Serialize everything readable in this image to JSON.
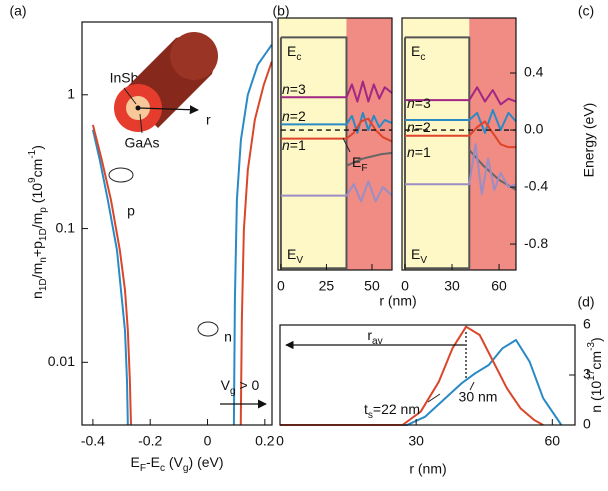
{
  "chart_data": [
    {
      "type": "line",
      "panel_label": "(a)",
      "xlabel": [
        [
          "E",
          ""
        ],
        [
          "F",
          "sub"
        ],
        [
          "-E",
          ""
        ],
        [
          "c",
          "sub"
        ],
        [
          " (V",
          ""
        ],
        [
          "g",
          "sub"
        ],
        [
          ") (eV)",
          ""
        ]
      ],
      "ylabel": [
        [
          "n",
          ""
        ],
        [
          "1D",
          "sub"
        ],
        [
          "/m",
          ""
        ],
        [
          "n",
          "sub"
        ],
        [
          "+p",
          ""
        ],
        [
          "1D",
          "sub"
        ],
        [
          "/m",
          ""
        ],
        [
          "p",
          "sub"
        ],
        [
          " (10",
          ""
        ],
        [
          "9",
          "sup"
        ],
        [
          "cm",
          ""
        ],
        [
          "-1",
          "sup"
        ],
        [
          ")",
          ""
        ]
      ],
      "log_y": true,
      "xlim": [
        -0.438,
        0.225
      ],
      "ylim": [
        0.0034,
        3.5
      ],
      "xticks": [
        -0.4,
        -0.2,
        0,
        0.2
      ],
      "yticks": [
        0.01,
        0.1,
        1
      ],
      "series": [
        {
          "color": "#2a8ac6",
          "x": [
            -0.4,
            -0.376,
            -0.348,
            -0.316,
            -0.302,
            -0.288,
            -0.281,
            -0.278
          ],
          "values": [
            0.547,
            0.326,
            0.164,
            0.069,
            0.0347,
            0.0173,
            0.0073,
            0.0034
          ]
        },
        {
          "color": "#d9472b",
          "x": [
            -0.4,
            -0.369,
            -0.337,
            -0.306,
            -0.288,
            -0.278,
            -0.271,
            -0.267
          ],
          "values": [
            0.596,
            0.326,
            0.164,
            0.069,
            0.0347,
            0.0173,
            0.0073,
            0.0034
          ]
        },
        {
          "color": "#2a8ac6",
          "x": [
            0.092,
            0.0955,
            0.1025,
            0.1165,
            0.1406,
            0.1755,
            0.2243
          ],
          "values": [
            0.0034,
            0.0292,
            0.164,
            0.46,
            1,
            1.68,
            2.37
          ]
        },
        {
          "color": "#d9472b",
          "x": [
            0.116,
            0.1198,
            0.1268,
            0.1406,
            0.1651,
            0.1965,
            0.2243
          ],
          "values": [
            0.0034,
            0.0207,
            0.0975,
            0.274,
            0.65,
            1.19,
            1.77
          ]
        }
      ],
      "annotations": [
        "InSb",
        "GaAs",
        "r",
        "p",
        "n",
        [
          [
            "V",
            ""
          ],
          [
            "g",
            "sub"
          ],
          [
            " > 0",
            ""
          ]
        ]
      ]
    },
    {
      "type": "line",
      "panel_label": "(b)",
      "xlabel": "r (nm)",
      "xlim": [
        -1.6,
        61
      ],
      "ylim": [
        -0.982,
        0.786
      ],
      "xticks": [
        0,
        25,
        50
      ],
      "core_radius": 36,
      "core_color": "#fdf8c6",
      "shell_color": "#f08c84",
      "series": [
        {
          "color": "#555555",
          "x": [
            0,
            36,
            36,
            0,
            0
          ],
          "values": [
            0.65,
            0.65,
            -0.97,
            -0.97,
            0.65
          ]
        },
        {
          "color": "#666666",
          "x": [
            36,
            45,
            55,
            61
          ],
          "values": [
            -0.25,
            -0.2,
            -0.17,
            -0.16
          ]
        },
        {
          "color": "#9b8ec4",
          "x": [
            0,
            36,
            40,
            44,
            48,
            52,
            56,
            61
          ],
          "values": [
            -0.46,
            -0.46,
            -0.38,
            -0.5,
            -0.36,
            -0.5,
            -0.4,
            -0.46
          ]
        },
        {
          "color": "#a02784",
          "x": [
            0,
            36,
            39,
            42,
            45,
            48,
            51,
            54,
            57,
            61
          ],
          "values": [
            0.23,
            0.23,
            0.32,
            0.2,
            0.34,
            0.2,
            0.32,
            0.22,
            0.3,
            0.26
          ]
        },
        {
          "color": "#2a8ac6",
          "x": [
            0,
            36,
            39,
            42,
            45,
            48,
            51,
            54,
            57,
            61
          ],
          "values": [
            0.04,
            0.04,
            0.1,
            -0.02,
            0.12,
            0.0,
            0.1,
            0.02,
            0.07,
            0.05
          ]
        },
        {
          "color": "#e0432a",
          "x": [
            0,
            36,
            40,
            44,
            48,
            52,
            56,
            61
          ],
          "values": [
            -0.06,
            -0.06,
            -0.02,
            0.06,
            0.08,
            0.0,
            -0.05,
            -0.08
          ]
        },
        {
          "color": "#111111",
          "dashed": true,
          "x": [
            0,
            61
          ],
          "values": [
            0,
            0
          ]
        }
      ],
      "annotations": [
        [
          [
            "E",
            ""
          ],
          [
            "c",
            "sub"
          ]
        ],
        [
          [
            "n",
            "it"
          ],
          [
            "=3",
            ""
          ]
        ],
        [
          [
            "n",
            "it"
          ],
          [
            "=2",
            ""
          ]
        ],
        [
          [
            "n",
            "it"
          ],
          [
            "=1",
            ""
          ]
        ],
        [
          [
            "E",
            ""
          ],
          [
            "F",
            "sub"
          ]
        ],
        [
          [
            "E",
            ""
          ],
          [
            "V",
            "sub"
          ]
        ]
      ]
    },
    {
      "type": "line",
      "panel_label": "(c)",
      "ylabel": "Energy (eV)",
      "xlim": [
        -1.9,
        70.8
      ],
      "ylim": [
        -0.982,
        0.786
      ],
      "xticks": [
        0,
        30,
        60
      ],
      "yticks": [
        -0.8,
        -0.4,
        {
          "value": 0,
          "label": "0.0"
        },
        0.4
      ],
      "ytick_side": "right",
      "core_radius": 41,
      "core_color": "#fdf8c6",
      "shell_color": "#f08c84",
      "series": [
        {
          "color": "#555555",
          "x": [
            0,
            41,
            41,
            0,
            0
          ],
          "values": [
            0.65,
            0.65,
            -0.97,
            -0.97,
            0.65
          ]
        },
        {
          "color": "#666666",
          "x": [
            41,
            50,
            60,
            70.8
          ],
          "values": [
            -0.14,
            -0.25,
            -0.35,
            -0.42
          ]
        },
        {
          "color": "#9b8ec4",
          "x": [
            0,
            41,
            45,
            49,
            53,
            57,
            61,
            66,
            70.8
          ],
          "values": [
            -0.38,
            -0.38,
            -0.1,
            -0.45,
            -0.2,
            -0.42,
            -0.3,
            -0.4,
            -0.38
          ]
        },
        {
          "color": "#a02784",
          "x": [
            0,
            41,
            46,
            51,
            56,
            61,
            66,
            70.8
          ],
          "values": [
            0.21,
            0.21,
            0.3,
            0.2,
            0.28,
            0.18,
            0.22,
            0.2
          ]
        },
        {
          "color": "#2a8ac6",
          "x": [
            0,
            41,
            46,
            51,
            56,
            61,
            66,
            70.8
          ],
          "values": [
            0.07,
            0.07,
            0.12,
            -0.02,
            0.14,
            0.0,
            0.12,
            0.06
          ]
        },
        {
          "color": "#e0432a",
          "x": [
            0,
            41,
            46,
            51,
            56,
            61,
            66,
            70.8
          ],
          "values": [
            -0.04,
            -0.04,
            0.02,
            0.06,
            -0.02,
            -0.1,
            -0.12,
            -0.12
          ]
        },
        {
          "color": "#111111",
          "dashed": true,
          "x": [
            0,
            70.8
          ],
          "values": [
            0,
            0
          ]
        }
      ],
      "annotations": [
        [
          [
            "E",
            ""
          ],
          [
            "c",
            "sub"
          ]
        ],
        [
          [
            "n",
            "it"
          ],
          [
            "=3",
            ""
          ]
        ],
        [
          [
            "n",
            "it"
          ],
          [
            "=2",
            ""
          ]
        ],
        [
          [
            "n",
            "it"
          ],
          [
            "=1",
            ""
          ]
        ],
        [
          [
            "E",
            ""
          ],
          [
            "V",
            "sub"
          ]
        ]
      ]
    },
    {
      "type": "line",
      "panel_label": "(d)",
      "xlabel": "r (nm)",
      "ylabel": [
        [
          "n (10",
          ""
        ],
        [
          "17",
          "sup"
        ],
        [
          "cm",
          ""
        ],
        [
          "-3",
          "sup"
        ],
        [
          ")",
          ""
        ]
      ],
      "xlim": [
        0,
        65
      ],
      "ylim": [
        0,
        6
      ],
      "xticks": [
        0,
        30,
        60
      ],
      "yticks": [
        0,
        3,
        6
      ],
      "ytick_side": "right",
      "series": [
        {
          "color": "#2a8ac6",
          "x": [
            0,
            28,
            32,
            36,
            40,
            43,
            46,
            49,
            52,
            55,
            58,
            62
          ],
          "values": [
            0,
            0,
            0.5,
            1.5,
            2.5,
            3.1,
            3.6,
            4.6,
            5.1,
            3.8,
            1.6,
            0
          ]
        },
        {
          "color": "#d9472b",
          "x": [
            0,
            27,
            31,
            35,
            38,
            41,
            44,
            47,
            50,
            53,
            56,
            58
          ],
          "values": [
            0,
            0,
            0.8,
            2.6,
            4.6,
            5.9,
            5.4,
            3.8,
            2.2,
            1.0,
            0.3,
            0
          ]
        }
      ],
      "annotations": [
        [
          [
            "r",
            ""
          ],
          [
            "av",
            "sub"
          ]
        ],
        [
          [
            "t",
            ""
          ],
          [
            "s",
            "sub"
          ],
          [
            "=22 nm",
            ""
          ]
        ],
        "30 nm"
      ]
    }
  ]
}
